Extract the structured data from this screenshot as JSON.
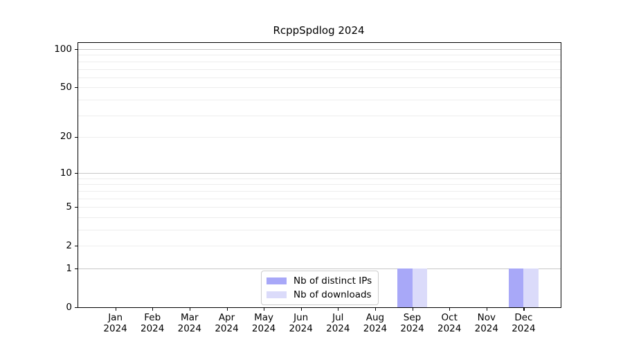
{
  "chart_data": {
    "type": "bar",
    "title": "RcppSpdlog 2024",
    "categories": [
      "Jan 2024",
      "Feb 2024",
      "Mar 2024",
      "Apr 2024",
      "May 2024",
      "Jun 2024",
      "Jul 2024",
      "Aug 2024",
      "Sep 2024",
      "Oct 2024",
      "Nov 2024",
      "Dec 2024"
    ],
    "series": [
      {
        "name": "Nb of distinct IPs",
        "color": "#a8a8f8",
        "values": [
          0,
          0,
          0,
          0,
          0,
          0,
          0,
          0,
          1,
          0,
          0,
          1
        ]
      },
      {
        "name": "Nb of downloads",
        "color": "#dbdbfa",
        "values": [
          0,
          0,
          0,
          0,
          0,
          0,
          0,
          0,
          1,
          0,
          0,
          1
        ]
      }
    ],
    "xlabel": "",
    "ylabel": "",
    "yscale": "log1p",
    "ylim": [
      0,
      110
    ],
    "y_ticks": [
      0,
      1,
      2,
      5,
      10,
      20,
      50,
      100
    ],
    "y_gridlines_major": [
      1,
      10,
      100
    ],
    "y_gridlines_minor": [
      2,
      3,
      4,
      5,
      6,
      7,
      8,
      9,
      20,
      30,
      40,
      50,
      60,
      70,
      80,
      90
    ],
    "grid": true,
    "legend_position": "lower center"
  }
}
